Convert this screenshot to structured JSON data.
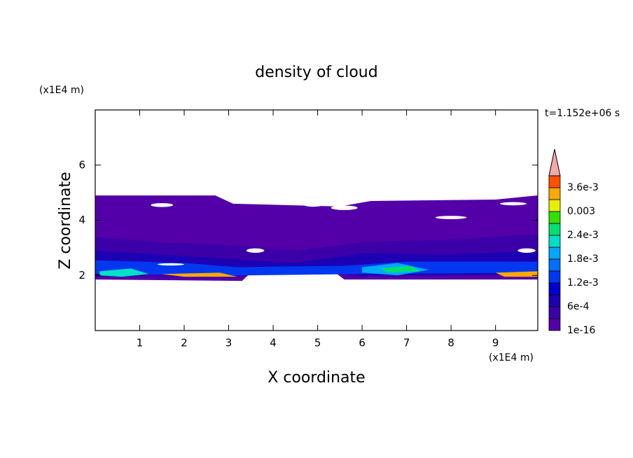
{
  "chart_data": {
    "type": "contour",
    "title": "density of cloud",
    "annotation": "t=1.152e+06 s",
    "xlabel": "X coordinate",
    "ylabel": "Z coordinate",
    "xunit": "(x1E4 m)",
    "yunit": "(x1E4 m)",
    "xlim": [
      0,
      9.95
    ],
    "ylim": [
      0,
      8
    ],
    "xticks": [
      1,
      2,
      3,
      4,
      5,
      6,
      7,
      8,
      9
    ],
    "yticks": [
      2,
      4,
      6
    ],
    "colorbar": {
      "levels": [
        1e-16,
        0.0003,
        0.0006,
        0.0009,
        0.0012,
        0.0015,
        0.0018,
        0.0021,
        0.0024,
        0.0027,
        0.003,
        0.0033,
        0.0036,
        0.0039
      ],
      "colors": [
        "#5400a8",
        "#3c00a8",
        "#1c00b4",
        "#0000d0",
        "#0038f0",
        "#0070ff",
        "#00a8ff",
        "#00e0c8",
        "#00e070",
        "#30e000",
        "#e8f000",
        "#ffa800",
        "#ff5000"
      ],
      "extend_color": "#f4a8a8",
      "ticks": [
        {
          "value": 1e-16,
          "label": "1e-16"
        },
        {
          "value": 0.0006,
          "label": "6e-4"
        },
        {
          "value": 0.0012,
          "label": "1.2e-3"
        },
        {
          "value": 0.0018,
          "label": "1.8e-3"
        },
        {
          "value": 0.0024,
          "label": "2.4e-3"
        },
        0.003,
        {
          "value": 0.0036,
          "label": "3.6e-3"
        }
      ]
    }
  }
}
